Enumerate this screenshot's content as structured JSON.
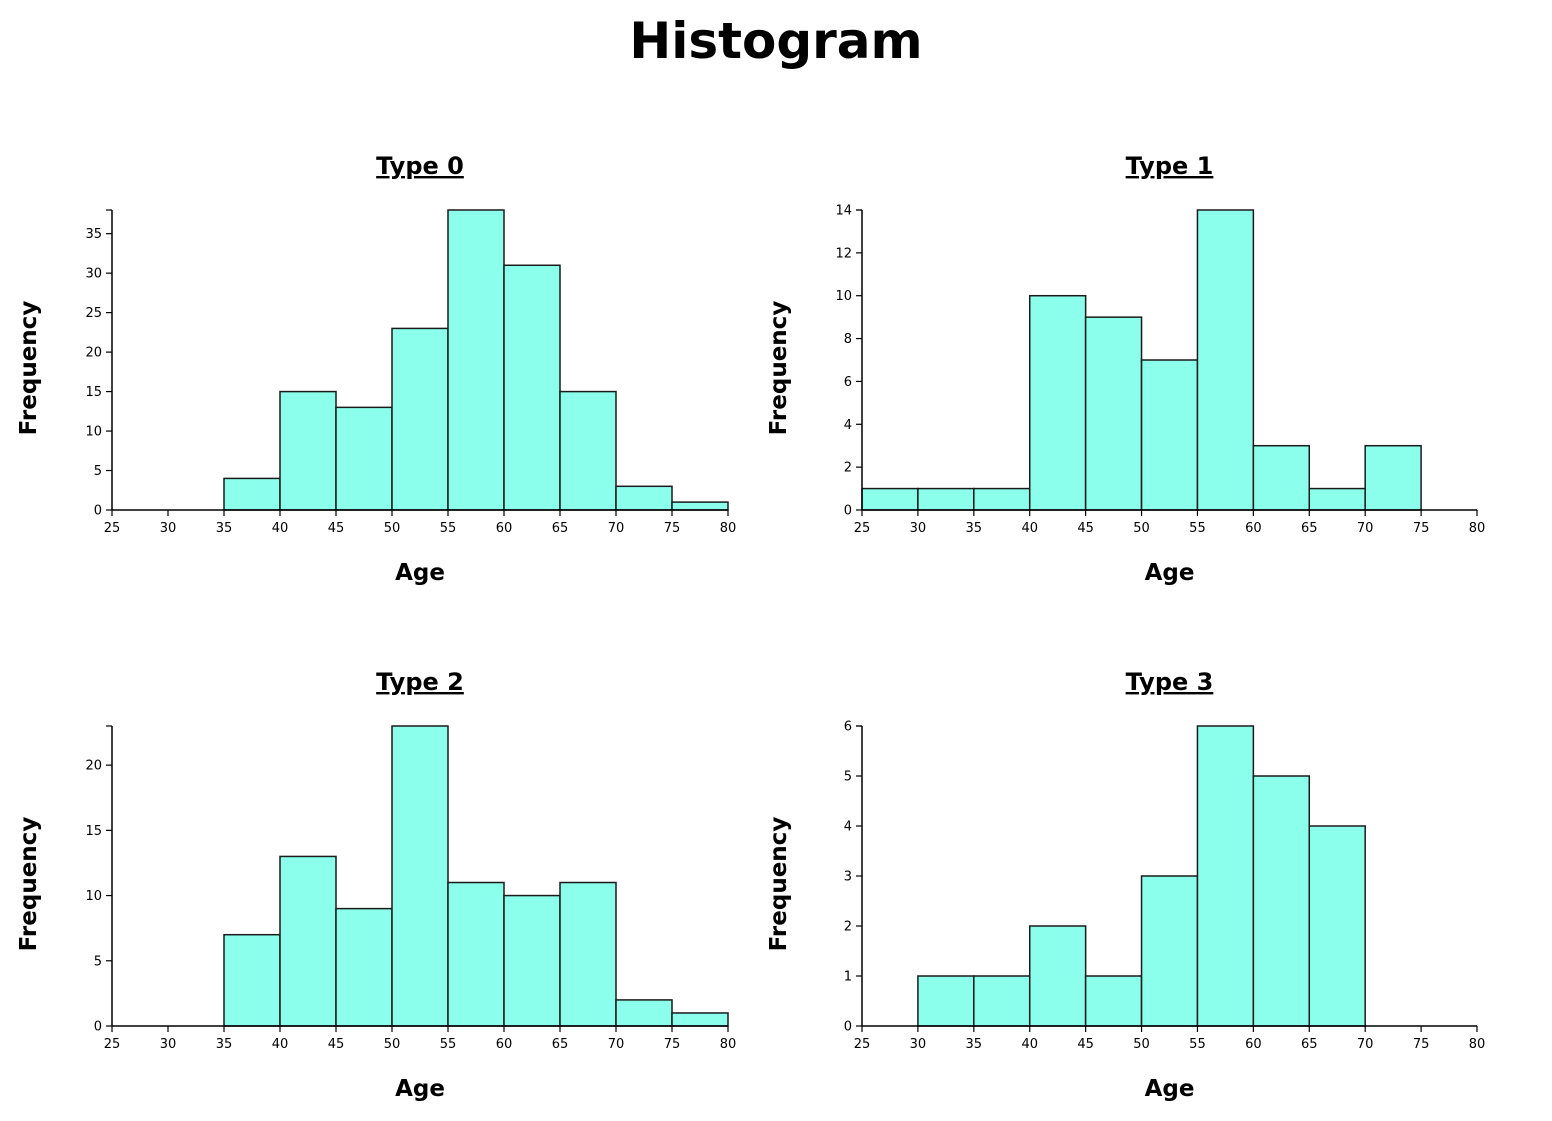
{
  "title": "Histogram",
  "chart_data": [
    {
      "type": "bar",
      "title": "Type 0",
      "xlabel": "Age",
      "ylabel": "Frequency",
      "xlim": [
        25,
        80
      ],
      "ylim": [
        0,
        38
      ],
      "x_ticks": [
        25,
        30,
        35,
        40,
        45,
        50,
        55,
        60,
        65,
        70,
        75,
        80
      ],
      "y_ticks": [
        0,
        5,
        10,
        15,
        20,
        25,
        30,
        35
      ],
      "bins": [
        {
          "start": 35,
          "end": 40,
          "count": 4
        },
        {
          "start": 40,
          "end": 45,
          "count": 15
        },
        {
          "start": 45,
          "end": 50,
          "count": 13
        },
        {
          "start": 50,
          "end": 55,
          "count": 23
        },
        {
          "start": 55,
          "end": 60,
          "count": 38
        },
        {
          "start": 60,
          "end": 65,
          "count": 31
        },
        {
          "start": 65,
          "end": 70,
          "count": 15
        },
        {
          "start": 70,
          "end": 75,
          "count": 3
        },
        {
          "start": 75,
          "end": 80,
          "count": 1
        }
      ],
      "bar_color": "#8bffeb",
      "grid": false
    },
    {
      "type": "bar",
      "title": "Type 1",
      "xlabel": "Age",
      "ylabel": "Frequency",
      "xlim": [
        25,
        80
      ],
      "ylim": [
        0,
        14
      ],
      "x_ticks": [
        25,
        30,
        35,
        40,
        45,
        50,
        55,
        60,
        65,
        70,
        75,
        80
      ],
      "y_ticks": [
        0,
        2,
        4,
        6,
        8,
        10,
        12,
        14
      ],
      "bins": [
        {
          "start": 25,
          "end": 30,
          "count": 1
        },
        {
          "start": 30,
          "end": 35,
          "count": 1
        },
        {
          "start": 35,
          "end": 40,
          "count": 1
        },
        {
          "start": 40,
          "end": 45,
          "count": 10
        },
        {
          "start": 45,
          "end": 50,
          "count": 9
        },
        {
          "start": 50,
          "end": 55,
          "count": 7
        },
        {
          "start": 55,
          "end": 60,
          "count": 14
        },
        {
          "start": 60,
          "end": 65,
          "count": 3
        },
        {
          "start": 65,
          "end": 70,
          "count": 1
        },
        {
          "start": 70,
          "end": 75,
          "count": 3
        }
      ],
      "bar_color": "#8bffeb",
      "grid": false
    },
    {
      "type": "bar",
      "title": "Type 2",
      "xlabel": "Age",
      "ylabel": "Frequency",
      "xlim": [
        25,
        80
      ],
      "ylim": [
        0,
        23
      ],
      "x_ticks": [
        25,
        30,
        35,
        40,
        45,
        50,
        55,
        60,
        65,
        70,
        75,
        80
      ],
      "y_ticks": [
        0,
        5,
        10,
        15,
        20
      ],
      "bins": [
        {
          "start": 35,
          "end": 40,
          "count": 7
        },
        {
          "start": 40,
          "end": 45,
          "count": 13
        },
        {
          "start": 45,
          "end": 50,
          "count": 9
        },
        {
          "start": 50,
          "end": 55,
          "count": 23
        },
        {
          "start": 55,
          "end": 60,
          "count": 11
        },
        {
          "start": 60,
          "end": 65,
          "count": 10
        },
        {
          "start": 65,
          "end": 70,
          "count": 11
        },
        {
          "start": 70,
          "end": 75,
          "count": 2
        },
        {
          "start": 75,
          "end": 80,
          "count": 1
        }
      ],
      "bar_color": "#8bffeb",
      "grid": false
    },
    {
      "type": "bar",
      "title": "Type 3",
      "xlabel": "Age",
      "ylabel": "Frequency",
      "xlim": [
        25,
        80
      ],
      "ylim": [
        0,
        6
      ],
      "x_ticks": [
        25,
        30,
        35,
        40,
        45,
        50,
        55,
        60,
        65,
        70,
        75,
        80
      ],
      "y_ticks": [
        0,
        1,
        2,
        3,
        4,
        5,
        6
      ],
      "bins": [
        {
          "start": 30,
          "end": 35,
          "count": 1
        },
        {
          "start": 35,
          "end": 40,
          "count": 1
        },
        {
          "start": 40,
          "end": 45,
          "count": 2
        },
        {
          "start": 45,
          "end": 50,
          "count": 1
        },
        {
          "start": 50,
          "end": 55,
          "count": 3
        },
        {
          "start": 55,
          "end": 60,
          "count": 6
        },
        {
          "start": 60,
          "end": 65,
          "count": 5
        },
        {
          "start": 65,
          "end": 70,
          "count": 4
        }
      ],
      "bar_color": "#8bffeb",
      "grid": false
    }
  ]
}
